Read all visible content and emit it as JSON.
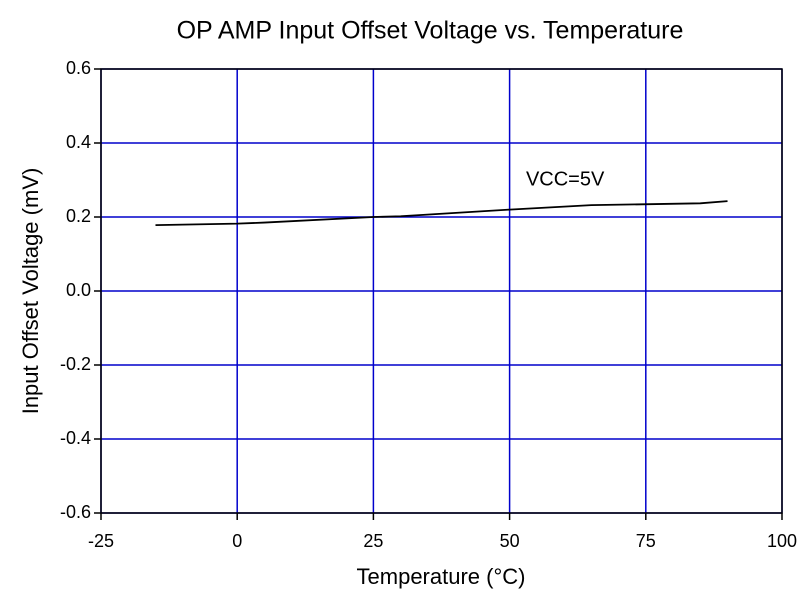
{
  "chart_data": {
    "type": "line",
    "title": "OP AMP Input Offset Voltage vs. Temperature",
    "x_label": "Temperature (°C)",
    "y_label": "Input Offset Voltage (mV)",
    "annotation": "VCC=5V",
    "x": [
      -15,
      0,
      5,
      25,
      30,
      50,
      65,
      85,
      90
    ],
    "series": [
      {
        "name": "VCC=5V",
        "color": "#000000",
        "values": [
          0.178,
          0.182,
          0.185,
          0.2,
          0.202,
          0.22,
          0.232,
          0.237,
          0.243
        ]
      }
    ],
    "xlim": [
      -25,
      100
    ],
    "xticks": [
      -25,
      0,
      25,
      50,
      75,
      100
    ],
    "ylim": [
      -0.6,
      0.6
    ],
    "yticks": [
      -0.6,
      -0.4,
      -0.2,
      {
        "value": 0,
        "label": "0.0"
      },
      0.2,
      0.4,
      0.6
    ],
    "grid": true,
    "grid_color": "#0000cc"
  }
}
